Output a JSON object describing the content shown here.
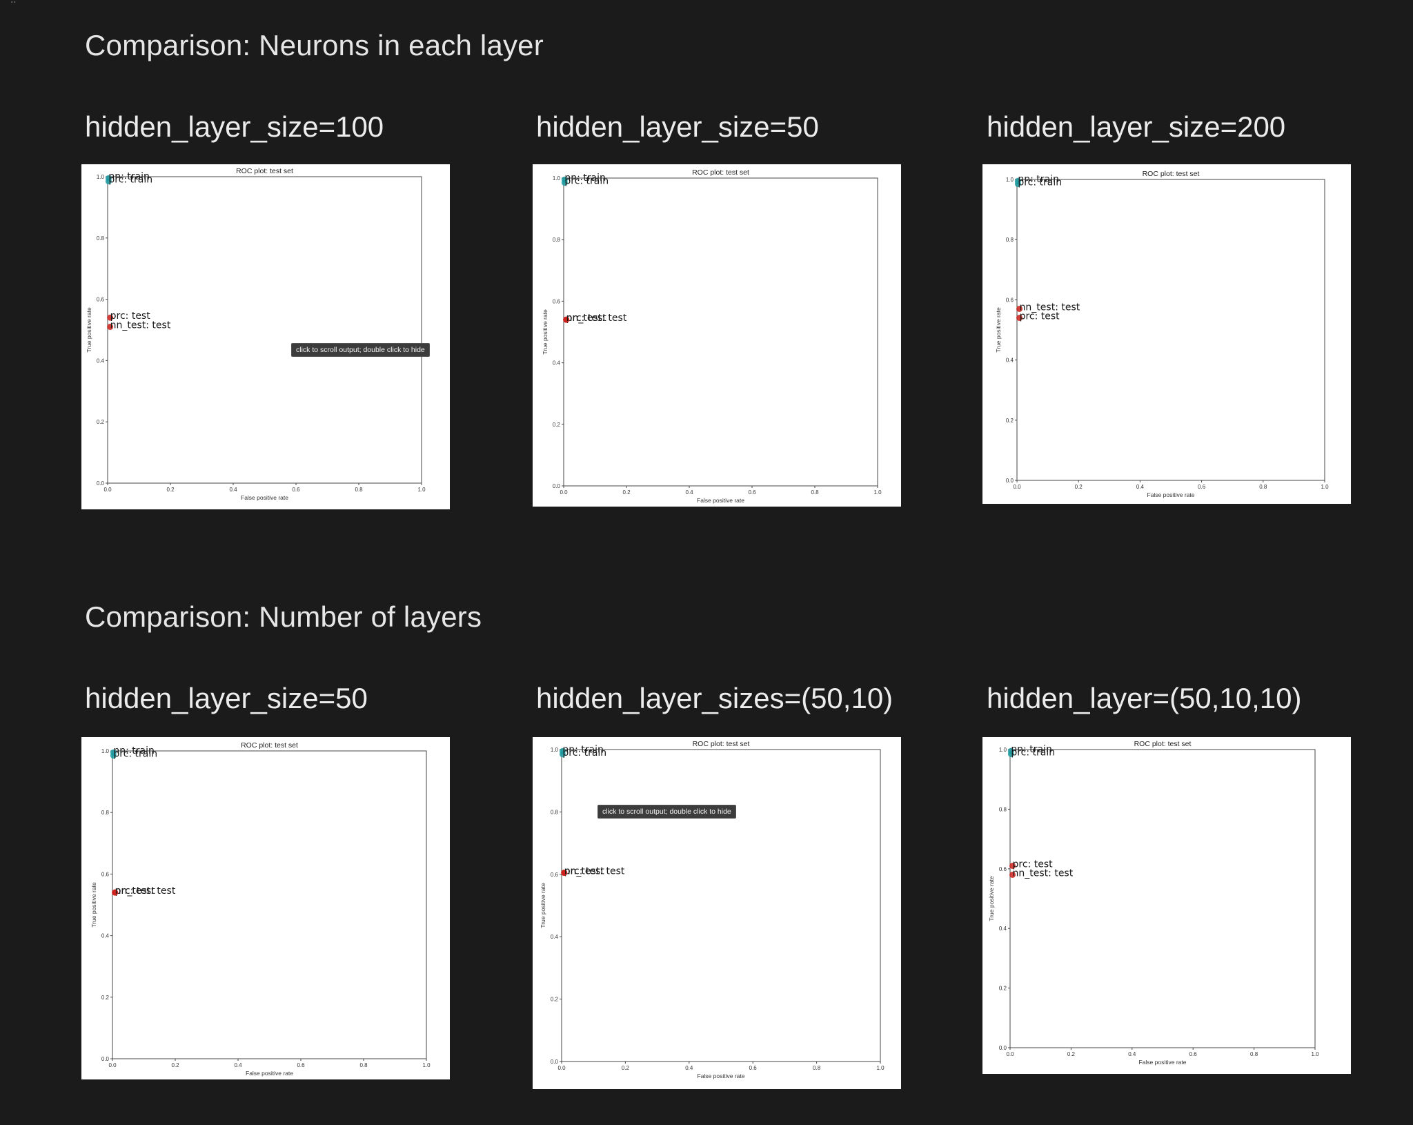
{
  "sections": [
    {
      "title": "Comparison: Neurons in each layer"
    },
    {
      "title": "Comparison: Number of layers"
    }
  ],
  "tooltip_text": "click to scroll output; double click to hide",
  "chart_data": [
    {
      "panel_title": "hidden_layer_size=100",
      "type": "scatter",
      "title": "ROC plot: test set",
      "xlabel": "False positive rate",
      "ylabel": "True positive rate",
      "xlim": [
        0.0,
        1.0
      ],
      "ylim": [
        0.0,
        1.0
      ],
      "xticks": [
        "0.0",
        "0.2",
        "0.4",
        "0.6",
        "0.8",
        "1.0"
      ],
      "yticks": [
        "0.0",
        "0.2",
        "0.4",
        "0.6",
        "0.8",
        "1.0"
      ],
      "points": [
        {
          "label": "nn: train",
          "x": 0.003,
          "y": 0.995,
          "color": "#1a9aa0"
        },
        {
          "label": "prc: train",
          "x": 0.003,
          "y": 0.985,
          "color": "#1a9aa0"
        },
        {
          "label": "prc: test",
          "x": 0.008,
          "y": 0.54,
          "color": "#cc1f1a"
        },
        {
          "label": "nn_test: test",
          "x": 0.008,
          "y": 0.51,
          "color": "#cc1f1a"
        }
      ]
    },
    {
      "panel_title": "hidden_layer_size=50",
      "type": "scatter",
      "title": "ROC plot: test set",
      "xlabel": "False positive rate",
      "ylabel": "True positive rate",
      "xlim": [
        0.0,
        1.0
      ],
      "ylim": [
        0.0,
        1.0
      ],
      "xticks": [
        "0.0",
        "0.2",
        "0.4",
        "0.6",
        "0.8",
        "1.0"
      ],
      "yticks": [
        "0.0",
        "0.2",
        "0.4",
        "0.6",
        "0.8",
        "1.0"
      ],
      "points": [
        {
          "label": "nn: train",
          "x": 0.003,
          "y": 0.995,
          "color": "#1a9aa0"
        },
        {
          "label": "prc: train",
          "x": 0.003,
          "y": 0.985,
          "color": "#1a9aa0"
        },
        {
          "label": "prc: test",
          "x": 0.008,
          "y": 0.54,
          "color": "#cc1f1a"
        },
        {
          "label": "nn_test: test",
          "x": 0.008,
          "y": 0.54,
          "color": "#cc1f1a"
        }
      ]
    },
    {
      "panel_title": "hidden_layer_size=200",
      "type": "scatter",
      "title": "ROC plot: test set",
      "xlabel": "False positive rate",
      "ylabel": "True positive rate",
      "xlim": [
        0.0,
        1.0
      ],
      "ylim": [
        0.0,
        1.0
      ],
      "xticks": [
        "0.0",
        "0.2",
        "0.4",
        "0.6",
        "0.8",
        "1.0"
      ],
      "yticks": [
        "0.0",
        "0.2",
        "0.4",
        "0.6",
        "0.8",
        "1.0"
      ],
      "points": [
        {
          "label": "nn: train",
          "x": 0.003,
          "y": 0.995,
          "color": "#1a9aa0"
        },
        {
          "label": "prc: train",
          "x": 0.003,
          "y": 0.985,
          "color": "#1a9aa0"
        },
        {
          "label": "nn_test: test",
          "x": 0.008,
          "y": 0.57,
          "color": "#cc1f1a"
        },
        {
          "label": "prc: test",
          "x": 0.008,
          "y": 0.54,
          "color": "#cc1f1a"
        }
      ]
    },
    {
      "panel_title": "hidden_layer_size=50",
      "type": "scatter",
      "title": "ROC plot: test set",
      "xlabel": "False positive rate",
      "ylabel": "True positive rate",
      "xlim": [
        0.0,
        1.0
      ],
      "ylim": [
        0.0,
        1.0
      ],
      "xticks": [
        "0.0",
        "0.2",
        "0.4",
        "0.6",
        "0.8",
        "1.0"
      ],
      "yticks": [
        "0.0",
        "0.2",
        "0.4",
        "0.6",
        "0.8",
        "1.0"
      ],
      "points": [
        {
          "label": "nn: train",
          "x": 0.003,
          "y": 0.995,
          "color": "#1a9aa0"
        },
        {
          "label": "prc: train",
          "x": 0.003,
          "y": 0.985,
          "color": "#1a9aa0"
        },
        {
          "label": "prc: test",
          "x": 0.008,
          "y": 0.54,
          "color": "#cc1f1a"
        },
        {
          "label": "nn_test: test",
          "x": 0.008,
          "y": 0.54,
          "color": "#cc1f1a"
        }
      ]
    },
    {
      "panel_title": "hidden_layer_sizes=(50,10)",
      "type": "scatter",
      "title": "ROC plot: test set",
      "xlabel": "False positive rate",
      "ylabel": "True positive rate",
      "xlim": [
        0.0,
        1.0
      ],
      "ylim": [
        0.0,
        1.0
      ],
      "xticks": [
        "0.0",
        "0.2",
        "0.4",
        "0.6",
        "0.8",
        "1.0"
      ],
      "yticks": [
        "0.0",
        "0.2",
        "0.4",
        "0.6",
        "0.8",
        "1.0"
      ],
      "points": [
        {
          "label": "nn: train",
          "x": 0.003,
          "y": 0.995,
          "color": "#1a9aa0"
        },
        {
          "label": "prc: train",
          "x": 0.003,
          "y": 0.985,
          "color": "#1a9aa0"
        },
        {
          "label": "prc: test",
          "x": 0.008,
          "y": 0.605,
          "color": "#cc1f1a"
        },
        {
          "label": "nn_test: test",
          "x": 0.008,
          "y": 0.605,
          "color": "#cc1f1a"
        }
      ]
    },
    {
      "panel_title": "hidden_layer=(50,10,10)",
      "type": "scatter",
      "title": "ROC plot: test set",
      "xlabel": "False positive rate",
      "ylabel": "True positive rate",
      "xlim": [
        0.0,
        1.0
      ],
      "ylim": [
        0.0,
        1.0
      ],
      "xticks": [
        "0.0",
        "0.2",
        "0.4",
        "0.6",
        "0.8",
        "1.0"
      ],
      "yticks": [
        "0.0",
        "0.2",
        "0.4",
        "0.6",
        "0.8",
        "1.0"
      ],
      "points": [
        {
          "label": "nn: train",
          "x": 0.003,
          "y": 0.995,
          "color": "#1a9aa0"
        },
        {
          "label": "prc: train",
          "x": 0.003,
          "y": 0.985,
          "color": "#1a9aa0"
        },
        {
          "label": "prc: test",
          "x": 0.008,
          "y": 0.61,
          "color": "#cc1f1a"
        },
        {
          "label": "nn_test: test",
          "x": 0.008,
          "y": 0.58,
          "color": "#cc1f1a"
        }
      ]
    }
  ]
}
